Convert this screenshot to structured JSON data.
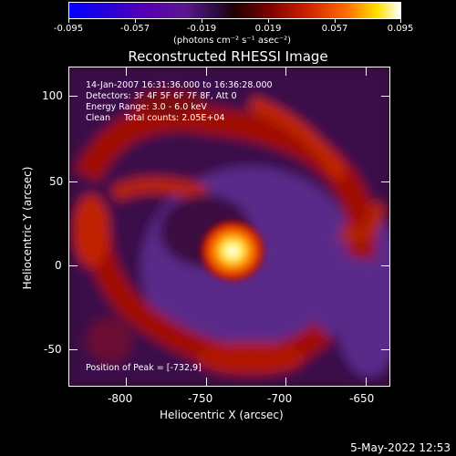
{
  "colorbar": {
    "tick_labels": [
      "-0.095",
      "-0.057",
      "-0.019",
      "0.019",
      "0.057",
      "0.095"
    ],
    "units": "(photons cm⁻² s⁻¹ asec⁻²)"
  },
  "title": "Reconstructed RHESSI Image",
  "info": {
    "line1": "14-Jan-2007 16:31:36.000 to 16:36:28.000",
    "line2": "Detectors: 3F 4F 5F 6F 7F 8F, Att 0",
    "line3": "Energy Range: 3.0 - 6.0 keV",
    "line4": "Clean     Total counts: 2.05E+04"
  },
  "peak": "Position of Peak = [-732,9]",
  "axes": {
    "xlabel": "Heliocentric X (arcsec)",
    "ylabel": "Heliocentric Y (arcsec)",
    "x_ticks": [
      "-800",
      "-750",
      "-700",
      "-650"
    ],
    "y_ticks": [
      "100",
      "50",
      "0",
      "-50"
    ]
  },
  "datestamp": "5-May-2022 12:53"
}
